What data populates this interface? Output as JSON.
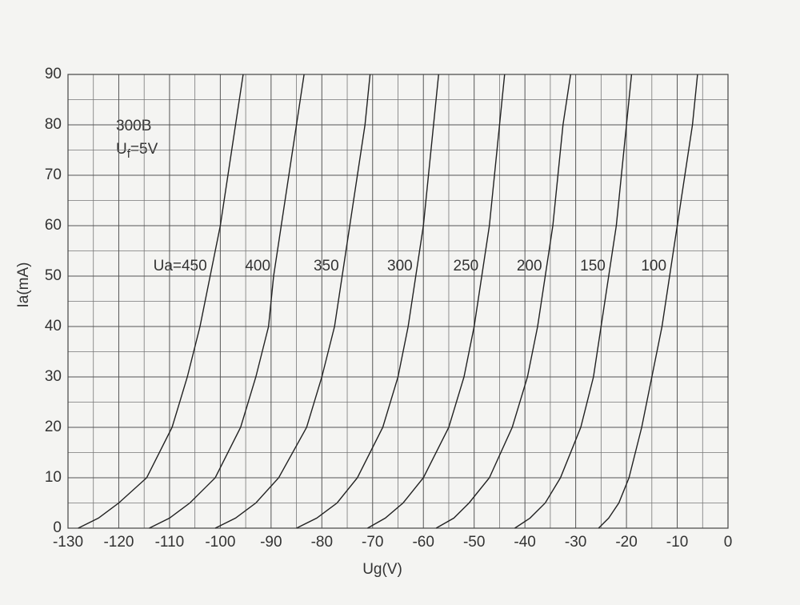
{
  "chart_data": {
    "type": "line",
    "annotations": [
      "300B"
    ],
    "filament_label": {
      "main": "U",
      "sub": "f",
      "rest": "=5V"
    },
    "x_label": "Ug(V)",
    "y_label": "Ia(mA)",
    "xlim": [
      -130,
      0
    ],
    "ylim": [
      0,
      90
    ],
    "xticks": [
      -130,
      -120,
      -110,
      -100,
      -90,
      -80,
      -70,
      -60,
      -50,
      -40,
      -30,
      -20,
      -10,
      0
    ],
    "yticks": [
      0,
      10,
      20,
      30,
      40,
      50,
      60,
      70,
      80,
      90
    ],
    "x_minor_ticks": [
      -125,
      -115,
      -105,
      -95,
      -85,
      -75,
      -65,
      -55,
      -45,
      -35,
      -25,
      -15,
      -5
    ],
    "y_minor_ticks": [
      5,
      15,
      25,
      35,
      45,
      55,
      65,
      75,
      85
    ],
    "grid": true,
    "series": [
      {
        "name": "Ua=450",
        "color": "#222222",
        "x": [
          -128,
          -124,
          -120,
          -114.5,
          -109.5,
          -106.5,
          -104,
          -102,
          -100,
          -98.5,
          -97,
          -95.5
        ],
        "values": [
          0,
          2,
          5,
          10,
          20,
          30,
          40,
          50,
          60,
          70,
          80,
          90
        ]
      },
      {
        "name": "400",
        "color": "#222222",
        "x": [
          -114,
          -110,
          -106,
          -101,
          -96,
          -93,
          -90.5,
          -89.5,
          -88,
          -86.5,
          -85,
          -83.5
        ],
        "values": [
          0,
          2,
          5,
          10,
          20,
          30,
          40,
          50,
          60,
          70,
          80,
          90
        ]
      },
      {
        "name": "350",
        "color": "#222222",
        "x": [
          -101,
          -97,
          -93,
          -88.5,
          -83,
          -80,
          -77.5,
          -76,
          -74.5,
          -73,
          -71.5,
          -70.5
        ],
        "values": [
          0,
          2,
          5,
          10,
          20,
          30,
          40,
          50,
          60,
          70,
          80,
          90
        ]
      },
      {
        "name": "300",
        "color": "#222222",
        "x": [
          -85,
          -81,
          -77,
          -73,
          -68,
          -65,
          -63,
          -61.5,
          -60,
          -59,
          -58,
          -57
        ],
        "values": [
          0,
          2,
          5,
          10,
          20,
          30,
          40,
          50,
          60,
          70,
          80,
          90
        ]
      },
      {
        "name": "250",
        "color": "#222222",
        "x": [
          -71,
          -67.5,
          -64,
          -60,
          -55,
          -52,
          -50,
          -48.5,
          -47,
          -46,
          -45,
          -44
        ],
        "values": [
          0,
          2,
          5,
          10,
          20,
          30,
          40,
          50,
          60,
          70,
          80,
          90
        ]
      },
      {
        "name": "200",
        "color": "#222222",
        "x": [
          -57.5,
          -54,
          -51,
          -47,
          -42.5,
          -39.5,
          -37.5,
          -36,
          -34.5,
          -33.5,
          -32.5,
          -31
        ],
        "values": [
          0,
          2,
          5,
          10,
          20,
          30,
          40,
          50,
          60,
          70,
          80,
          90
        ]
      },
      {
        "name": "150",
        "color": "#222222",
        "x": [
          -42,
          -39,
          -36,
          -33,
          -29,
          -26.5,
          -25,
          -23.5,
          -22,
          -21,
          -20,
          -19
        ],
        "values": [
          0,
          2,
          5,
          10,
          20,
          30,
          40,
          50,
          60,
          70,
          80,
          90
        ]
      },
      {
        "name": "100",
        "color": "#222222",
        "x": [
          -25.5,
          -23.5,
          -21.5,
          -19.5,
          -17,
          -15,
          -13,
          -11.5,
          -10,
          -8.5,
          -7,
          -6
        ],
        "values": [
          0,
          2,
          5,
          10,
          20,
          30,
          40,
          50,
          60,
          70,
          80,
          90
        ]
      }
    ]
  }
}
